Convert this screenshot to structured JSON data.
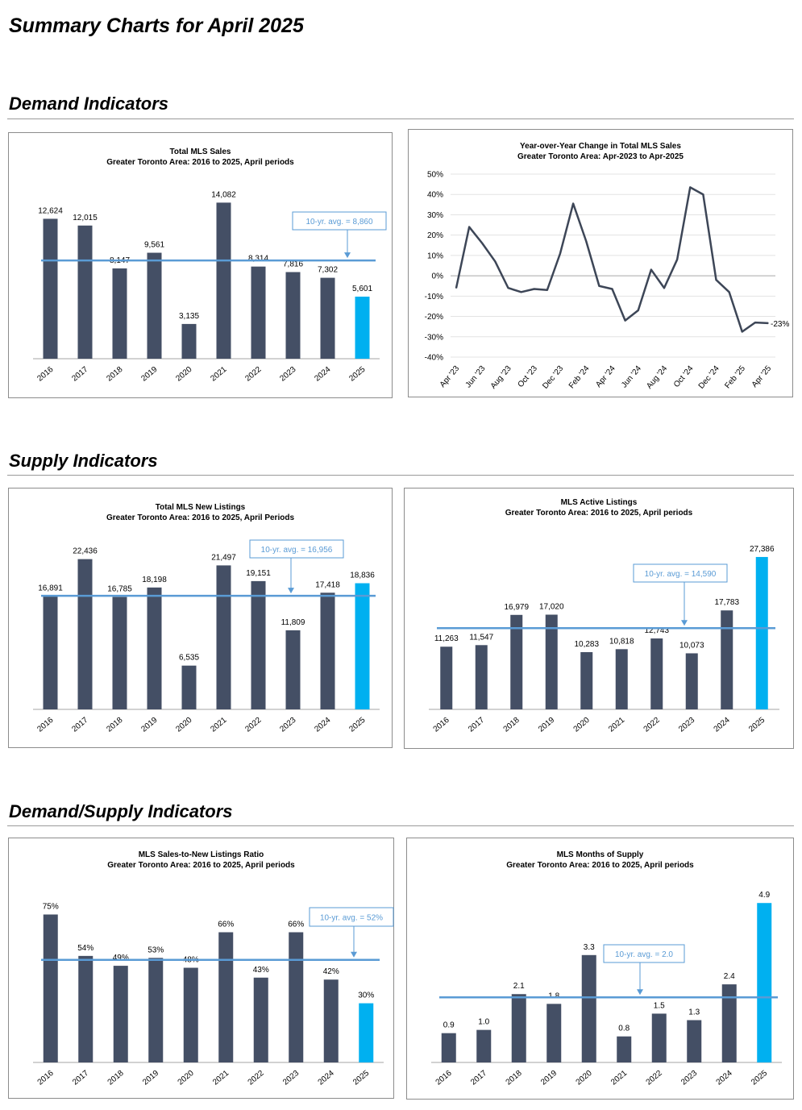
{
  "page": {
    "title": "Summary Charts for April 2025",
    "sections": [
      "Demand Indicators",
      "Supply Indicators",
      "Demand/Supply Indicators"
    ]
  },
  "colors": {
    "bar": "#444f65",
    "highlight": "#00b0f0",
    "avg_line": "#5a9bd5",
    "line": "#3d4657"
  },
  "chart_data": [
    {
      "id": "sales",
      "type": "bar",
      "title": "Total MLS Sales",
      "subtitle": "Greater Toronto Area: 2016 to 2025, April periods",
      "categories": [
        "2016",
        "2017",
        "2018",
        "2019",
        "2020",
        "2021",
        "2022",
        "2023",
        "2024",
        "2025"
      ],
      "values": [
        12624,
        12015,
        8147,
        9561,
        3135,
        14082,
        8314,
        7816,
        7302,
        5601
      ],
      "labels": [
        "12,624",
        "12,015",
        "8,147",
        "9,561",
        "3,135",
        "14,082",
        "8,314",
        "7,816",
        "7,302",
        "5,601"
      ],
      "avg_value": 8860,
      "avg_label": "10-yr. avg. = 8,860",
      "ylim": [
        0,
        16000
      ]
    },
    {
      "id": "yoy",
      "type": "line",
      "title": "Year-over-Year Change in Total MLS Sales",
      "subtitle": "Greater Toronto Area: Apr-2023 to Apr-2025",
      "values": [
        -6,
        24,
        16,
        7,
        -6,
        -8,
        -6.5,
        -7,
        11,
        35.5,
        17,
        -5,
        -6.5,
        -22,
        -17,
        3,
        -6,
        8,
        43.5,
        40,
        -2,
        -8,
        -27.5,
        -23,
        -23.3
      ],
      "x_tick_labels": [
        "Apr '23",
        "Jun '23",
        "Aug '23",
        "Oct '23",
        "Dec '23",
        "Feb '24",
        "Apr '24",
        "Jun '24",
        "Aug '24",
        "Oct '24",
        "Dec '24",
        "Feb '25",
        "Apr '25"
      ],
      "y_ticks": [
        50,
        40,
        30,
        20,
        10,
        0,
        -10,
        -20,
        -30,
        -40
      ],
      "y_tick_labels": [
        "50%",
        "40%",
        "30%",
        "20%",
        "10%",
        "0%",
        "-10%",
        "-20%",
        "-30%",
        "-40%"
      ],
      "end_label": "-23%",
      "ylim": [
        -40,
        50
      ],
      "grid": true
    },
    {
      "id": "newlistings",
      "type": "bar",
      "title": "Total MLS New Listings",
      "subtitle": "Greater Toronto Area: 2016 to 2025, April Periods",
      "categories": [
        "2016",
        "2017",
        "2018",
        "2019",
        "2020",
        "2021",
        "2022",
        "2023",
        "2024",
        "2025"
      ],
      "values": [
        16891,
        22436,
        16785,
        18198,
        6535,
        21497,
        19151,
        11809,
        17418,
        18836
      ],
      "labels": [
        "16,891",
        "22,436",
        "16,785",
        "18,198",
        "6,535",
        "21,497",
        "19,151",
        "11,809",
        "17,418",
        "18,836"
      ],
      "avg_value": 16956,
      "avg_label": "10-yr. avg. = 16,956",
      "ylim": [
        0,
        26000
      ]
    },
    {
      "id": "active",
      "type": "bar",
      "title": "MLS Active Listings",
      "subtitle": "Greater Toronto Area: 2016 to 2025, April periods",
      "categories": [
        "2016",
        "2017",
        "2018",
        "2019",
        "2020",
        "2021",
        "2022",
        "2023",
        "2024",
        "2025"
      ],
      "values": [
        11263,
        11547,
        16979,
        17020,
        10283,
        10818,
        12743,
        10073,
        17783,
        27386
      ],
      "labels": [
        "11,263",
        "11,547",
        "16,979",
        "17,020",
        "10,283",
        "10,818",
        "12,743",
        "10,073",
        "17,783",
        "27,386"
      ],
      "avg_value": 14590,
      "avg_label": "10-yr. avg. = 14,590",
      "ylim": [
        0,
        31000
      ]
    },
    {
      "id": "snlr",
      "type": "bar",
      "title": "MLS Sales-to-New Listings Ratio",
      "subtitle": "Greater Toronto Area: 2016 to 2025, April periods",
      "categories": [
        "2016",
        "2017",
        "2018",
        "2019",
        "2020",
        "2021",
        "2022",
        "2023",
        "2024",
        "2025"
      ],
      "values": [
        75,
        54,
        49,
        53,
        48,
        66,
        43,
        66,
        42,
        30
      ],
      "labels": [
        "75%",
        "54%",
        "49%",
        "53%",
        "48%",
        "66%",
        "43%",
        "66%",
        "42%",
        "30%"
      ],
      "avg_value": 52,
      "avg_label": "10-yr. avg. = 52%",
      "ylim": [
        0,
        85
      ]
    },
    {
      "id": "mos",
      "type": "bar",
      "title": "MLS Months of Supply",
      "subtitle": "Greater Toronto Area: 2016 to 2025, April periods",
      "categories": [
        "2016",
        "2017",
        "2018",
        "2019",
        "2020",
        "2021",
        "2022",
        "2023",
        "2024",
        "2025"
      ],
      "values": [
        0.9,
        1.0,
        2.1,
        1.8,
        3.3,
        0.8,
        1.5,
        1.3,
        2.4,
        4.9
      ],
      "labels": [
        "0.9",
        "1.0",
        "2.1",
        "1.8",
        "3.3",
        "0.8",
        "1.5",
        "1.3",
        "2.4",
        "4.9"
      ],
      "avg_value": 2.0,
      "avg_label": "10-yr. avg. = 2.0",
      "ylim": [
        0,
        5.5
      ]
    }
  ]
}
